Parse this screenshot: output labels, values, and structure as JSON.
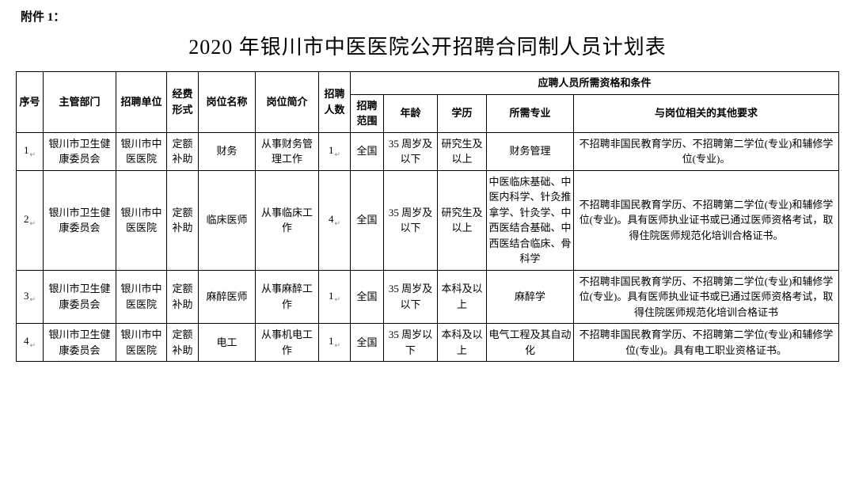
{
  "attachment_label": "附件 1：",
  "title": "2020 年银川市中医医院公开招聘合同制人员计划表",
  "headers": {
    "seq": "序号",
    "dept": "主管部门",
    "unit": "招聘单位",
    "fund": "经费形式",
    "pos": "岗位名称",
    "desc": "岗位简介",
    "count": "招聘人数",
    "req_group": "应聘人员所需资格和条件",
    "scope": "招聘范围",
    "age": "年龄",
    "edu": "学历",
    "major": "所需专业",
    "other": "与岗位相关的其他要求"
  },
  "rows": [
    {
      "seq": "1",
      "dept": "银川市卫生健康委员会",
      "unit": "银川市中医医院",
      "fund": "定额补助",
      "pos": "财务",
      "desc": "从事财务管理工作",
      "count": "1",
      "scope": "全国",
      "age": "35 周岁及以下",
      "edu": "研究生及以上",
      "major": "财务管理",
      "other": "不招聘非国民教育学历、不招聘第二学位(专业)和辅修学位(专业)。"
    },
    {
      "seq": "2",
      "dept": "银川市卫生健康委员会",
      "unit": "银川市中医医院",
      "fund": "定额补助",
      "pos": "临床医师",
      "desc": "从事临床工作",
      "count": "4",
      "scope": "全国",
      "age": "35 周岁及以下",
      "edu": "研究生及以上",
      "major": "中医临床基础、中医内科学、针灸推拿学、针灸学、中西医结合基础、中西医结合临床、骨科学",
      "other": "不招聘非国民教育学历、不招聘第二学位(专业)和辅修学位(专业)。具有医师执业证书或已通过医师资格考试，取得住院医师规范化培训合格证书。"
    },
    {
      "seq": "3",
      "dept": "银川市卫生健康委员会",
      "unit": "银川市中医医院",
      "fund": "定额补助",
      "pos": "麻醉医师",
      "desc": "从事麻醉工作",
      "count": "1",
      "scope": "全国",
      "age": "35 周岁及以下",
      "edu": "本科及以上",
      "major": "麻醉学",
      "other": "不招聘非国民教育学历、不招聘第二学位(专业)和辅修学位(专业)。具有医师执业证书或已通过医师资格考试，取得住院医师规范化培训合格证书"
    },
    {
      "seq": "4",
      "dept": "银川市卫生健康委员会",
      "unit": "银川市中医医院",
      "fund": "定额补助",
      "pos": "电工",
      "desc": "从事机电工作",
      "count": "1",
      "scope": "全国",
      "age": "35 周岁以下",
      "edu": "本科及以上",
      "major": "电气工程及其自动化",
      "other": "不招聘非国民教育学历、不招聘第二学位(专业)和辅修学位(专业)。具有电工职业资格证书。"
    }
  ]
}
